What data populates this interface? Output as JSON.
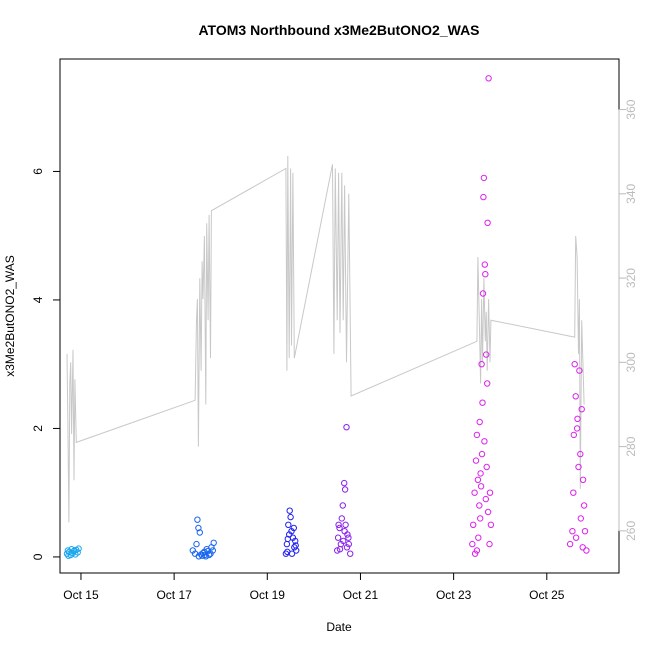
{
  "chart_data": {
    "type": "scatter",
    "title": "ATOM3 Northbound x3Me2ButONO2_WAS",
    "xlabel": "Date",
    "ylabel": "x3Me2ButONO2_WAS",
    "xlim": [
      14.55,
      26.55
    ],
    "ylim": [
      -0.25,
      7.75
    ],
    "ylim_right": [
      250,
      372
    ],
    "x_ticks": [
      {
        "x": 15,
        "label": "Oct 15"
      },
      {
        "x": 17,
        "label": "Oct 17"
      },
      {
        "x": 19,
        "label": "Oct 19"
      },
      {
        "x": 21,
        "label": "Oct 21"
      },
      {
        "x": 23,
        "label": "Oct 23"
      },
      {
        "x": 25,
        "label": "Oct 25"
      }
    ],
    "y_ticks": [
      {
        "y": 0,
        "label": "0"
      },
      {
        "y": 2,
        "label": "2"
      },
      {
        "y": 4,
        "label": "4"
      },
      {
        "y": 6,
        "label": "6"
      }
    ],
    "y_right_ticks": [
      {
        "y": 260,
        "label": "260"
      },
      {
        "y": 280,
        "label": "280"
      },
      {
        "y": 300,
        "label": "300"
      },
      {
        "y": 320,
        "label": "320"
      },
      {
        "y": 340,
        "label": "340"
      },
      {
        "y": 360,
        "label": "360"
      }
    ],
    "grid": false,
    "point_series": [
      {
        "color": "#1aa6ee",
        "points": [
          [
            14.7,
            0.05
          ],
          [
            14.72,
            0.1
          ],
          [
            14.75,
            0.08
          ],
          [
            14.78,
            0.03
          ],
          [
            14.8,
            0.12
          ],
          [
            14.82,
            0.06
          ],
          [
            14.85,
            0.09
          ],
          [
            14.88,
            0.04
          ],
          [
            14.9,
            0.11
          ],
          [
            14.93,
            0.07
          ],
          [
            14.95,
            0.13
          ],
          [
            14.73,
            0.02
          ],
          [
            14.86,
            0.1
          ]
        ]
      },
      {
        "color": "#1a66ee",
        "points": [
          [
            17.4,
            0.1
          ],
          [
            17.45,
            0.05
          ],
          [
            17.5,
            0.58
          ],
          [
            17.52,
            0.45
          ],
          [
            17.55,
            0.38
          ],
          [
            17.48,
            0.2
          ],
          [
            17.6,
            0.02
          ],
          [
            17.65,
            0.08
          ],
          [
            17.7,
            0.12
          ],
          [
            17.75,
            0.03
          ],
          [
            17.8,
            0.15
          ],
          [
            17.85,
            0.22
          ],
          [
            17.58,
            0.04
          ],
          [
            17.62,
            0.06
          ],
          [
            17.68,
            0.01
          ],
          [
            17.72,
            0.09
          ],
          [
            17.78,
            0.05
          ],
          [
            17.83,
            0.1
          ],
          [
            17.53,
            0.01
          ],
          [
            17.66,
            0.03
          ]
        ]
      },
      {
        "color": "#2222ee",
        "points": [
          [
            19.4,
            0.05
          ],
          [
            19.42,
            0.2
          ],
          [
            19.45,
            0.5
          ],
          [
            19.48,
            0.72
          ],
          [
            19.5,
            0.62
          ],
          [
            19.52,
            0.4
          ],
          [
            19.55,
            0.3
          ],
          [
            19.58,
            0.15
          ],
          [
            19.6,
            0.25
          ],
          [
            19.62,
            0.1
          ],
          [
            19.43,
            0.08
          ],
          [
            19.47,
            0.35
          ],
          [
            19.53,
            0.05
          ],
          [
            19.57,
            0.45
          ],
          [
            19.61,
            0.18
          ],
          [
            19.44,
            0.28
          ]
        ]
      },
      {
        "color": "#8a22ee",
        "points": [
          [
            20.5,
            0.1
          ],
          [
            20.52,
            0.3
          ],
          [
            20.55,
            0.45
          ],
          [
            20.58,
            0.2
          ],
          [
            20.6,
            0.6
          ],
          [
            20.62,
            0.8
          ],
          [
            20.65,
            1.15
          ],
          [
            20.67,
            1.05
          ],
          [
            20.7,
            2.02
          ],
          [
            20.68,
            0.5
          ],
          [
            20.72,
            0.35
          ],
          [
            20.75,
            0.2
          ],
          [
            20.78,
            0.05
          ],
          [
            20.56,
            0.12
          ],
          [
            20.63,
            0.25
          ],
          [
            20.66,
            0.4
          ],
          [
            20.71,
            0.15
          ],
          [
            20.53,
            0.5
          ],
          [
            20.74,
            0.3
          ]
        ]
      },
      {
        "color": "#dd22ee",
        "points": [
          [
            23.4,
            0.2
          ],
          [
            23.42,
            0.5
          ],
          [
            23.45,
            1.0
          ],
          [
            23.48,
            1.5
          ],
          [
            23.5,
            1.9
          ],
          [
            23.52,
            1.2
          ],
          [
            23.55,
            0.8
          ],
          [
            23.58,
            1.3
          ],
          [
            23.6,
            3.0
          ],
          [
            23.62,
            2.4
          ],
          [
            23.63,
            4.1
          ],
          [
            23.65,
            5.9
          ],
          [
            23.64,
            5.6
          ],
          [
            23.67,
            4.55
          ],
          [
            23.68,
            4.4
          ],
          [
            23.7,
            3.15
          ],
          [
            23.72,
            2.7
          ],
          [
            23.73,
            5.2
          ],
          [
            23.75,
            7.45
          ],
          [
            23.78,
            1.0
          ],
          [
            23.8,
            0.5
          ],
          [
            23.5,
            0.1
          ],
          [
            23.53,
            0.3
          ],
          [
            23.57,
            0.6
          ],
          [
            23.61,
            1.6
          ],
          [
            23.66,
            1.8
          ],
          [
            23.69,
            0.9
          ],
          [
            23.71,
            1.4
          ],
          [
            23.74,
            0.7
          ],
          [
            23.46,
            0.05
          ],
          [
            23.56,
            2.1
          ],
          [
            23.59,
            1.1
          ],
          [
            23.77,
            0.2
          ],
          [
            25.5,
            0.2
          ],
          [
            25.55,
            0.4
          ],
          [
            25.58,
            1.9
          ],
          [
            25.6,
            3.0
          ],
          [
            25.62,
            2.5
          ],
          [
            25.65,
            2.0
          ],
          [
            25.7,
            2.9
          ],
          [
            25.72,
            1.6
          ],
          [
            25.75,
            2.3
          ],
          [
            25.78,
            1.2
          ],
          [
            25.8,
            0.8
          ],
          [
            25.82,
            0.4
          ],
          [
            25.85,
            0.1
          ],
          [
            25.57,
            1.0
          ],
          [
            25.63,
            0.3
          ],
          [
            25.68,
            1.4
          ],
          [
            25.73,
            0.6
          ],
          [
            25.77,
            0.15
          ],
          [
            25.66,
            2.15
          ]
        ]
      }
    ],
    "line_series": {
      "color": "#c8c8c8",
      "axis": "right",
      "points": [
        [
          14.7,
          302
        ],
        [
          14.72,
          285
        ],
        [
          14.74,
          262
        ],
        [
          14.76,
          295
        ],
        [
          14.78,
          300
        ],
        [
          14.8,
          283
        ],
        [
          14.83,
          303
        ],
        [
          14.85,
          272
        ],
        [
          14.87,
          296
        ],
        [
          14.9,
          281
        ],
        [
          17.45,
          291
        ],
        [
          17.48,
          310
        ],
        [
          17.5,
          315
        ],
        [
          17.52,
          280
        ],
        [
          17.55,
          320
        ],
        [
          17.58,
          298
        ],
        [
          17.6,
          324
        ],
        [
          17.62,
          315
        ],
        [
          17.65,
          330
        ],
        [
          17.68,
          290
        ],
        [
          17.7,
          333
        ],
        [
          17.73,
          310
        ],
        [
          17.75,
          335
        ],
        [
          17.78,
          301
        ],
        [
          17.8,
          336
        ],
        [
          19.4,
          346
        ],
        [
          19.42,
          298
        ],
        [
          19.44,
          349
        ],
        [
          19.47,
          301
        ],
        [
          19.5,
          346
        ],
        [
          19.52,
          304
        ],
        [
          19.55,
          345
        ],
        [
          19.58,
          301
        ],
        [
          20.4,
          347
        ],
        [
          20.43,
          302
        ],
        [
          20.46,
          346
        ],
        [
          20.5,
          310
        ],
        [
          20.53,
          345
        ],
        [
          20.56,
          307
        ],
        [
          20.6,
          345
        ],
        [
          20.63,
          310
        ],
        [
          20.66,
          342
        ],
        [
          20.7,
          300
        ],
        [
          20.75,
          340
        ],
        [
          20.8,
          292
        ],
        [
          23.5,
          305
        ],
        [
          23.52,
          325
        ],
        [
          23.55,
          310
        ],
        [
          23.58,
          295
        ],
        [
          23.6,
          315
        ],
        [
          23.62,
          300
        ],
        [
          23.65,
          320
        ],
        [
          23.68,
          305
        ],
        [
          23.7,
          312
        ],
        [
          23.72,
          298
        ],
        [
          23.75,
          315
        ],
        [
          23.78,
          300
        ],
        [
          23.8,
          310
        ],
        [
          25.6,
          306
        ],
        [
          25.62,
          330
        ],
        [
          25.65,
          325
        ],
        [
          25.68,
          302
        ],
        [
          25.7,
          315
        ],
        [
          25.72,
          270
        ],
        [
          25.75,
          310
        ],
        [
          25.8,
          290
        ]
      ]
    }
  }
}
